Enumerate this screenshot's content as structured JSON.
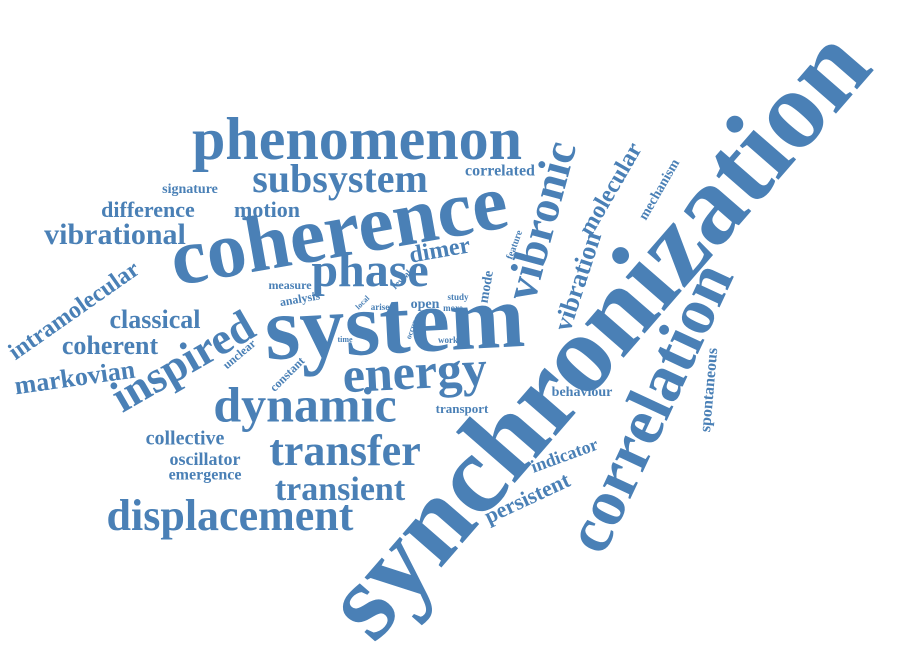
{
  "words": [
    "synchronization",
    "coherence",
    "system",
    "correlation",
    "phenomenon",
    "subsystem",
    "vibronic",
    "phase",
    "energy",
    "dynamic",
    "transfer",
    "transient",
    "displacement",
    "inspired",
    "vibrational",
    "difference",
    "motion",
    "signature",
    "intramolecular",
    "classical",
    "coherent",
    "markovian",
    "collective",
    "oscillator",
    "emergence",
    "correlated",
    "molecular",
    "mechanism",
    "vibration",
    "dimer",
    "feature",
    "mode",
    "measure",
    "analysis",
    "reveal",
    "local",
    "arise",
    "open",
    "study",
    "more",
    "occur",
    "work",
    "time",
    "unclear",
    "constant",
    "transport",
    "behaviour",
    "indicator",
    "persistent",
    "spontaneous"
  ]
}
